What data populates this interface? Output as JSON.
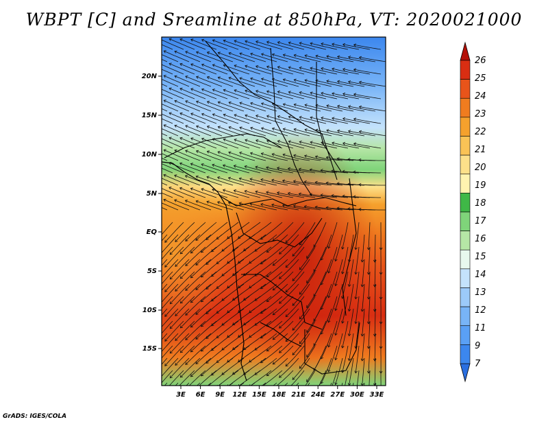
{
  "title": "WBPT [C] and Sreamline at 850hPa, VT: 2020021000",
  "footer": "GrADS: IGES/COLA",
  "map": {
    "lat_labels": [
      "20N",
      "15N",
      "10N",
      "5N",
      "EQ",
      "5S",
      "10S",
      "15S"
    ],
    "lon_labels": [
      "3E",
      "6E",
      "9E",
      "12E",
      "15E",
      "18E",
      "21E",
      "24E",
      "27E",
      "30E",
      "33E"
    ]
  },
  "colorbar": {
    "levels": [
      "7",
      "9",
      "11",
      "12",
      "13",
      "14",
      "15",
      "16",
      "17",
      "18",
      "19",
      "20",
      "21",
      "22",
      "23",
      "24",
      "25",
      "26"
    ],
    "colors": [
      "#2b6fe0",
      "#3c87ee",
      "#5aa0f5",
      "#78b4f7",
      "#9ccaf9",
      "#c4e2fb",
      "#e8f8ee",
      "#b6e6a6",
      "#7fd47a",
      "#3fb847",
      "#fff3b0",
      "#fde08a",
      "#fac356",
      "#f5a12d",
      "#f07c1f",
      "#e8541a",
      "#d92e12",
      "#b41108"
    ]
  }
}
